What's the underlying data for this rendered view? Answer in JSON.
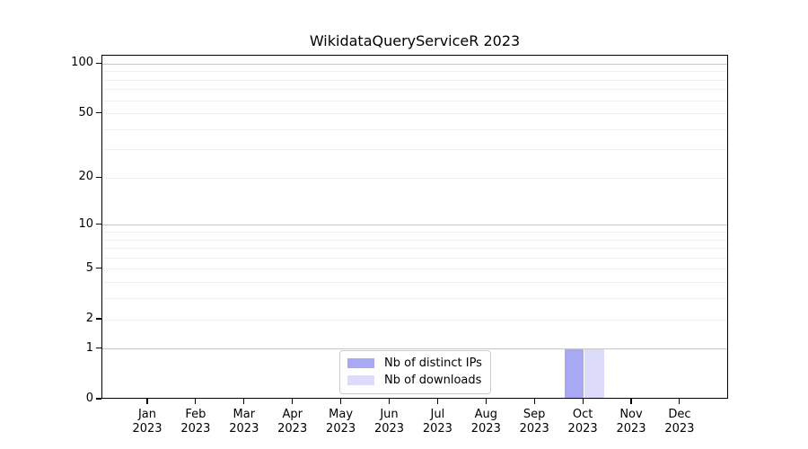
{
  "chart_data": {
    "type": "bar",
    "title": "WikidataQueryServiceR 2023",
    "categories": [
      "Jan 2023",
      "Feb 2023",
      "Mar 2023",
      "Apr 2023",
      "May 2023",
      "Jun 2023",
      "Jul 2023",
      "Aug 2023",
      "Sep 2023",
      "Oct 2023",
      "Nov 2023",
      "Dec 2023"
    ],
    "series": [
      {
        "name": "Nb of distinct IPs",
        "color": "#a8a8f3",
        "values": [
          0,
          0,
          0,
          0,
          0,
          0,
          0,
          0,
          0,
          1,
          0,
          0
        ]
      },
      {
        "name": "Nb of downloads",
        "color": "#dcdcfa",
        "values": [
          0,
          0,
          0,
          0,
          0,
          0,
          0,
          0,
          0,
          1,
          0,
          0
        ]
      }
    ],
    "yscale": "log1p",
    "ylim": [
      0,
      110
    ],
    "yticks": [
      0,
      1,
      2,
      5,
      10,
      20,
      50,
      100
    ],
    "major_grid_values": [
      1,
      10,
      100
    ],
    "minor_grid_values": [
      2,
      3,
      4,
      5,
      6,
      7,
      8,
      9,
      20,
      30,
      40,
      50,
      60,
      70,
      80,
      90
    ],
    "grid": true,
    "legend_position": "lower center"
  },
  "colors": {
    "background": "#ffffff",
    "axis": "#000000",
    "major_grid": "#c6c6c6",
    "minor_grid": "#f0f0f0",
    "legend_border": "#cccccc",
    "text": "#000000"
  }
}
